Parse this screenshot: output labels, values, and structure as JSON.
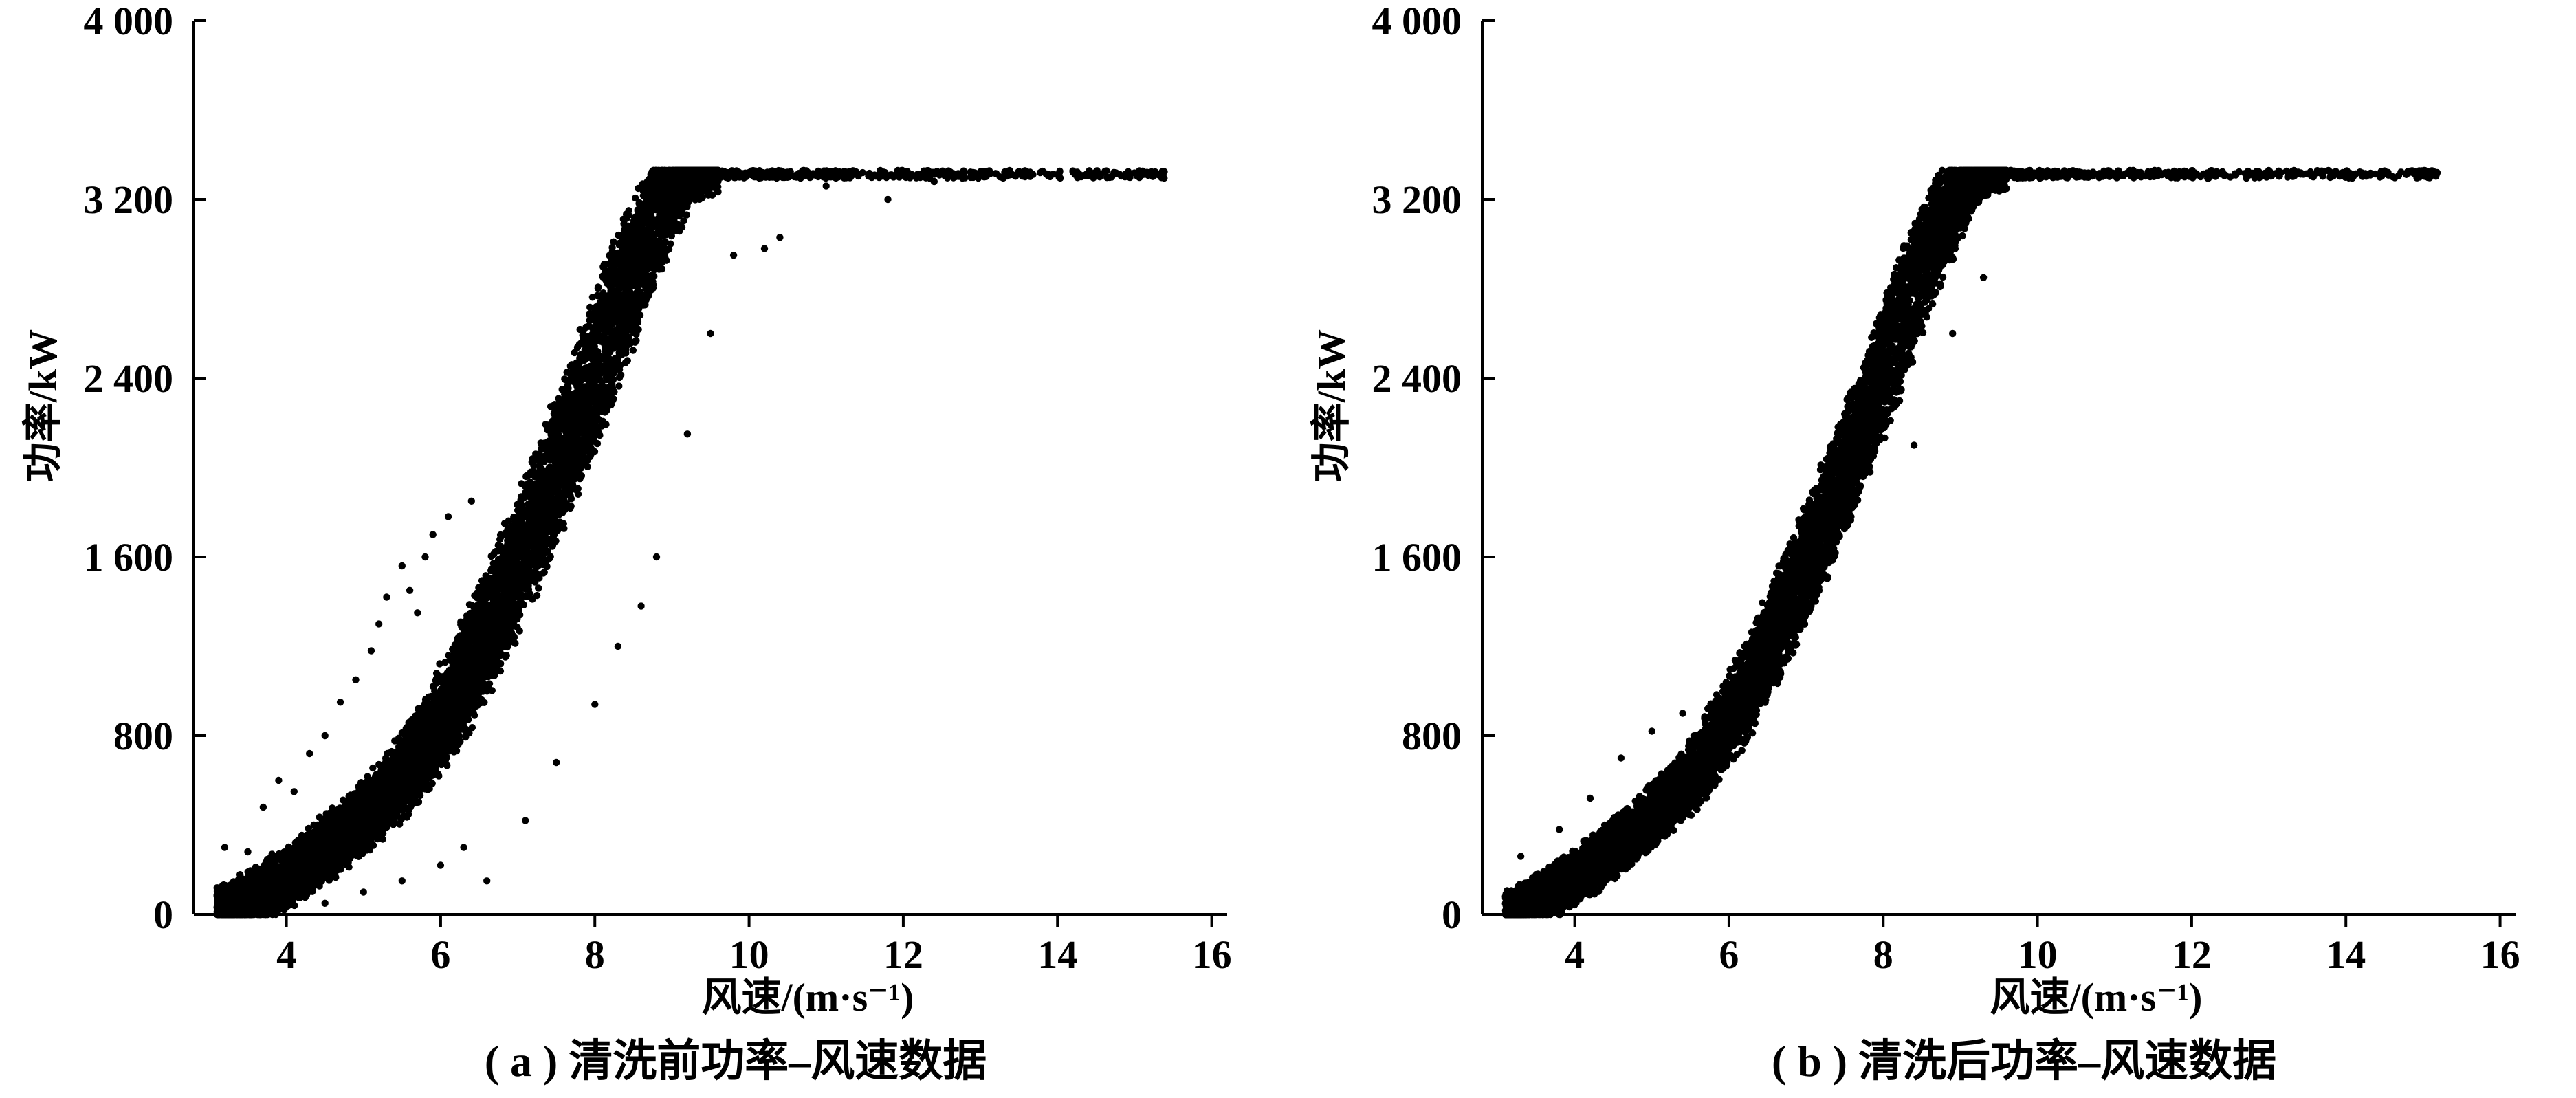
{
  "chart_data": [
    {
      "type": "scatter",
      "caption": "( a ) 清洗前功率–风速数据",
      "xlabel": "风速/(m·s⁻¹)",
      "ylabel": "功率/kW",
      "xlim": [
        2.8,
        16.2
      ],
      "ylim": [
        0,
        4000
      ],
      "xticks": [
        4,
        6,
        8,
        10,
        12,
        14,
        16
      ],
      "xtick_labels": [
        "4",
        "6",
        "8",
        "10",
        "12",
        "14",
        "16"
      ],
      "yticks": [
        0,
        800,
        1600,
        2400,
        3200,
        4000
      ],
      "ytick_labels": [
        "0",
        "800",
        "1 600",
        "2 400",
        "3 200",
        "4 000"
      ],
      "grid": false,
      "marker_color": "#000000",
      "curve": {
        "x": [
          3.1,
          3.5,
          4.0,
          4.5,
          5.0,
          5.5,
          6.0,
          6.5,
          7.0,
          7.5,
          8.0,
          8.5,
          9.0,
          9.5,
          10.0,
          12.0,
          14.0,
          15.4
        ],
        "y": [
          20,
          60,
          160,
          290,
          430,
          600,
          850,
          1180,
          1560,
          1980,
          2420,
          2900,
          3270,
          3330,
          3330,
          3330,
          3330,
          3330
        ],
        "spread_x": 0.32,
        "spread_y": 80,
        "x_max": 15.4,
        "rated_power": 3330
      },
      "outliers": [
        {
          "x": 3.2,
          "y": 300
        },
        {
          "x": 3.5,
          "y": 280
        },
        {
          "x": 3.7,
          "y": 480
        },
        {
          "x": 3.9,
          "y": 600
        },
        {
          "x": 4.1,
          "y": 550
        },
        {
          "x": 4.3,
          "y": 720
        },
        {
          "x": 4.5,
          "y": 800
        },
        {
          "x": 4.7,
          "y": 950
        },
        {
          "x": 4.9,
          "y": 1050
        },
        {
          "x": 5.1,
          "y": 1180
        },
        {
          "x": 5.3,
          "y": 1420
        },
        {
          "x": 5.5,
          "y": 1560
        },
        {
          "x": 5.6,
          "y": 1450
        },
        {
          "x": 5.8,
          "y": 1600
        },
        {
          "x": 5.9,
          "y": 1700
        },
        {
          "x": 6.1,
          "y": 1780
        },
        {
          "x": 4.5,
          "y": 50
        },
        {
          "x": 5.0,
          "y": 100
        },
        {
          "x": 5.5,
          "y": 150
        },
        {
          "x": 6.0,
          "y": 220
        },
        {
          "x": 6.3,
          "y": 300
        },
        {
          "x": 6.6,
          "y": 150
        },
        {
          "x": 7.1,
          "y": 420
        },
        {
          "x": 7.5,
          "y": 680
        },
        {
          "x": 8.0,
          "y": 940
        },
        {
          "x": 8.3,
          "y": 1200
        },
        {
          "x": 8.6,
          "y": 1380
        },
        {
          "x": 8.8,
          "y": 1600
        },
        {
          "x": 9.2,
          "y": 2150
        },
        {
          "x": 9.5,
          "y": 2600
        },
        {
          "x": 9.8,
          "y": 2950
        },
        {
          "x": 10.2,
          "y": 2980
        },
        {
          "x": 10.4,
          "y": 3030
        },
        {
          "x": 11.0,
          "y": 3260
        },
        {
          "x": 11.8,
          "y": 3200
        },
        {
          "x": 12.4,
          "y": 3280
        },
        {
          "x": 5.2,
          "y": 1300
        },
        {
          "x": 5.7,
          "y": 1350
        },
        {
          "x": 6.4,
          "y": 1850
        },
        {
          "x": 7.8,
          "y": 2200
        }
      ]
    },
    {
      "type": "scatter",
      "caption": "( b ) 清洗后功率–风速数据",
      "xlabel": "风速/(m·s⁻¹)",
      "ylabel": "功率/kW",
      "xlim": [
        2.8,
        16.2
      ],
      "ylim": [
        0,
        4000
      ],
      "xticks": [
        4,
        6,
        8,
        10,
        12,
        14,
        16
      ],
      "xtick_labels": [
        "4",
        "6",
        "8",
        "10",
        "12",
        "14",
        "16"
      ],
      "yticks": [
        0,
        800,
        1600,
        2400,
        3200,
        4000
      ],
      "ytick_labels": [
        "0",
        "800",
        "1 600",
        "2 400",
        "3 200",
        "4 000"
      ],
      "grid": false,
      "marker_color": "#000000",
      "curve": {
        "x": [
          3.1,
          3.5,
          4.0,
          4.5,
          5.0,
          5.5,
          6.0,
          6.5,
          7.0,
          7.5,
          8.0,
          8.5,
          9.0,
          9.5,
          10.0,
          12.0,
          14.0,
          15.2
        ],
        "y": [
          20,
          60,
          160,
          290,
          430,
          600,
          850,
          1180,
          1560,
          1980,
          2420,
          2900,
          3270,
          3330,
          3330,
          3330,
          3330,
          3330
        ],
        "spread_x": 0.28,
        "spread_y": 70,
        "x_max": 15.2,
        "rated_power": 3330
      },
      "outliers": [
        {
          "x": 3.3,
          "y": 260
        },
        {
          "x": 3.8,
          "y": 380
        },
        {
          "x": 4.2,
          "y": 520
        },
        {
          "x": 4.6,
          "y": 700
        },
        {
          "x": 5.0,
          "y": 820
        },
        {
          "x": 5.4,
          "y": 900
        },
        {
          "x": 6.2,
          "y": 1200
        },
        {
          "x": 6.6,
          "y": 1450
        },
        {
          "x": 7.2,
          "y": 1780
        },
        {
          "x": 7.6,
          "y": 2200
        },
        {
          "x": 8.4,
          "y": 2100
        },
        {
          "x": 8.9,
          "y": 2600
        },
        {
          "x": 9.3,
          "y": 2850
        },
        {
          "x": 10.2,
          "y": 3300
        },
        {
          "x": 11.5,
          "y": 3320
        },
        {
          "x": 12.5,
          "y": 3300
        }
      ]
    }
  ]
}
